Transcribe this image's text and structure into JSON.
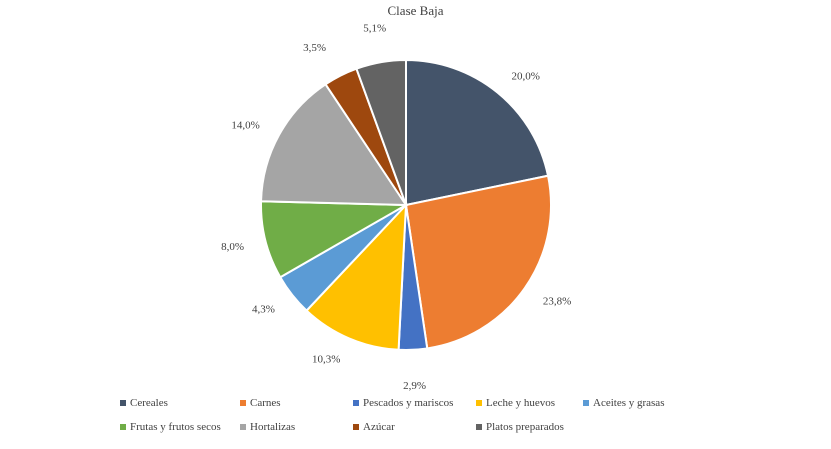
{
  "chart_data": {
    "type": "pie",
    "title": "Clase Baja",
    "categories": [
      "Cereales",
      "Carnes",
      "Pescados y mariscos",
      "Leche y huevos",
      "Aceites y grasas",
      "Frutas y frutos secos",
      "Hortalizas",
      "Azúcar",
      "Platos preparados"
    ],
    "values": [
      20.0,
      23.8,
      2.9,
      10.3,
      4.3,
      8.0,
      14.0,
      3.5,
      5.1
    ],
    "labels": [
      "20,0%",
      "23,8%",
      "2,9%",
      "10,3%",
      "4,3%",
      "8,0%",
      "14,0%",
      "3,5%",
      "5,1%"
    ],
    "colors": [
      "#44546A",
      "#ED7D31",
      "#4472C4",
      "#FFC000",
      "#5B9BD5",
      "#70AD47",
      "#A5A5A5",
      "#9E480E",
      "#636363"
    ],
    "legend_position": "bottom"
  }
}
